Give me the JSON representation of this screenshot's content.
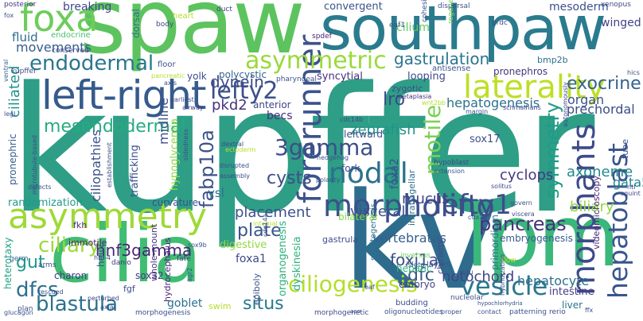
{
  "words": [
    {
      "text": "kupffer",
      "color": "#2e9e86"
    },
    {
      "text": "spaw",
      "color": "#5cc35f"
    },
    {
      "text": "southpaw",
      "color": "#2a7b8e"
    },
    {
      "text": "kv",
      "color": "#2e6c8e"
    },
    {
      "text": "lpm",
      "color": "#3ab77a"
    },
    {
      "text": "cilia",
      "color": "#40bd73"
    },
    {
      "text": "left-right",
      "color": "#365b8c"
    },
    {
      "text": "asymmetry",
      "color": "#9fd938"
    },
    {
      "text": "laterality",
      "color": "#bddf26"
    },
    {
      "text": "forerunner",
      "color": "#3b528b"
    },
    {
      "text": "morpholino",
      "color": "#3b518b"
    },
    {
      "text": "morphants",
      "color": "#3e4a89"
    },
    {
      "text": "hepatoblast",
      "color": "#39558c"
    },
    {
      "text": "foxa",
      "color": "#6ccd5a"
    },
    {
      "text": "asymmetric",
      "color": "#9bd93c"
    },
    {
      "text": "endodermal",
      "color": "#2a768e"
    },
    {
      "text": "ciliogenesis",
      "color": "#b5de2b"
    },
    {
      "text": "vesicle",
      "color": "#2a788e"
    },
    {
      "text": "nodal",
      "color": "#2c718e"
    },
    {
      "text": "lefty1",
      "color": "#3d4d8a"
    },
    {
      "text": "lefty2",
      "color": "#3b518b"
    },
    {
      "text": "blastula",
      "color": "#2c728e"
    },
    {
      "text": "dfcs",
      "color": "#2d708e"
    },
    {
      "text": "ciliary",
      "color": "#9bd93c"
    },
    {
      "text": "gastrulation",
      "color": "#2b748e"
    },
    {
      "text": "mesendodermal",
      "color": "#25ab82"
    },
    {
      "text": "exocrine",
      "color": "#33638d"
    },
    {
      "text": "pancreas",
      "color": "#46327e"
    },
    {
      "text": "3gamma",
      "color": "#3d4e8a"
    },
    {
      "text": "motile",
      "color": "#7ad151"
    },
    {
      "text": "symmetry",
      "color": "#1e9c89"
    },
    {
      "text": "dynein",
      "color": "#3e4c8a"
    },
    {
      "text": "lro",
      "color": "#3e4989"
    },
    {
      "text": "fabp10a",
      "color": "#3b528b"
    },
    {
      "text": "cysts",
      "color": "#3c4f8a"
    },
    {
      "text": "plate",
      "color": "#3a548c"
    },
    {
      "text": "placement",
      "color": "#3b518b"
    },
    {
      "text": "hnf3gamma",
      "color": "#482576"
    },
    {
      "text": "gut",
      "color": "#1f988b"
    },
    {
      "text": "situs",
      "color": "#2a788e"
    },
    {
      "text": "dfc",
      "color": "#38598c"
    },
    {
      "text": "foxj1a",
      "color": "#3d4e8a"
    },
    {
      "text": "notochord",
      "color": "#404588"
    },
    {
      "text": "hepatocyte",
      "color": "#2d708e"
    },
    {
      "text": "vertebrates",
      "color": "#35608d"
    },
    {
      "text": "mucus",
      "color": "#424086"
    },
    {
      "text": "visceral",
      "color": "#3b528b"
    },
    {
      "text": "biliary",
      "color": "#93d741"
    },
    {
      "text": "cyclops",
      "color": "#453882"
    },
    {
      "text": "axoneme",
      "color": "#23898e"
    },
    {
      "text": "gata5",
      "color": "#25848e"
    },
    {
      "text": "zebrafish",
      "color": "#1f958b"
    },
    {
      "text": "pkd2",
      "color": "#46337e"
    },
    {
      "text": "hepatogenesis",
      "color": "#2d708e"
    },
    {
      "text": "organ",
      "color": "#3b518b"
    },
    {
      "text": "prechordal",
      "color": "#3d4d8a"
    },
    {
      "text": "ciliated",
      "color": "#21918c"
    },
    {
      "text": "fluid",
      "color": "#2f6b8e"
    },
    {
      "text": "movements",
      "color": "#365c8d"
    },
    {
      "text": "mesoderm",
      "color": "#3b528b"
    },
    {
      "text": "winged",
      "color": "#414487"
    },
    {
      "text": "cilium",
      "color": "#5ec962"
    },
    {
      "text": "convergent",
      "color": "#3b528b"
    },
    {
      "text": "breaking",
      "color": "#3f4889"
    },
    {
      "text": "endocrine",
      "color": "#44bf70"
    },
    {
      "text": "polycystic",
      "color": "#33638d"
    },
    {
      "text": "syncytial",
      "color": "#46327e"
    },
    {
      "text": "looping",
      "color": "#3e4989"
    },
    {
      "text": "yolk",
      "color": "#3d4e8a"
    },
    {
      "text": "pronephros",
      "color": "#453781"
    },
    {
      "text": "bmp2b",
      "color": "#2c718e"
    },
    {
      "text": "becs",
      "color": "#472d7b"
    },
    {
      "text": "anterior",
      "color": "#414487"
    },
    {
      "text": "leftward",
      "color": "#3b528b"
    },
    {
      "text": "sox17",
      "color": "#3e4c8a"
    },
    {
      "text": "midline",
      "color": "#3b528b"
    },
    {
      "text": "hypoglycemia",
      "color": "#90d743"
    },
    {
      "text": "ciliopathies",
      "color": "#3a548c"
    },
    {
      "text": "trafficking",
      "color": "#3b528b"
    },
    {
      "text": "randomization",
      "color": "#1f9a8a"
    },
    {
      "text": "curvature",
      "color": "#3b518b"
    },
    {
      "text": "ysl",
      "color": "#2d708e"
    },
    {
      "text": "fkh",
      "color": "#46337e"
    },
    {
      "text": "immotile",
      "color": "#481f71"
    },
    {
      "text": "digestive",
      "color": "#93d741"
    },
    {
      "text": "foxa1",
      "color": "#3e4a89"
    },
    {
      "text": "helix",
      "color": "#3b518b"
    },
    {
      "text": "heterotaxy",
      "color": "#20a386"
    },
    {
      "text": "charon",
      "color": "#443983"
    },
    {
      "text": "sox32",
      "color": "#453882"
    },
    {
      "text": "hydrocephalus",
      "color": "#482878"
    },
    {
      "text": "whole-mount",
      "color": "#46327e"
    },
    {
      "text": "goblet",
      "color": "#2c728e"
    },
    {
      "text": "swim",
      "color": "#b5de2b"
    },
    {
      "text": "pronephric",
      "color": "#365c8d"
    },
    {
      "text": "organogenesis",
      "color": "#2db27d"
    },
    {
      "text": "dyskinesia",
      "color": "#2db27d"
    },
    {
      "text": "embryo",
      "color": "#414487"
    },
    {
      "text": "hepatic",
      "color": "#35b779"
    },
    {
      "text": "dorsal",
      "color": "#2d708e"
    },
    {
      "text": "posterior",
      "color": "#453781"
    },
    {
      "text": "somitogenesis",
      "color": "#2c728e"
    },
    {
      "text": "fork",
      "color": "#3e4989"
    },
    {
      "text": "foxa2",
      "color": "#3b528b"
    },
    {
      "text": "bilateral",
      "color": "#86d549"
    },
    {
      "text": "primordium",
      "color": "#2c728e"
    },
    {
      "text": "chirality",
      "color": "#3e4c8a"
    },
    {
      "text": "intestine",
      "color": "#433e85"
    },
    {
      "text": "liver",
      "color": "#2c728e"
    },
    {
      "text": "intraflagellar",
      "color": "#2c728e"
    },
    {
      "text": "embryogenesis",
      "color": "#365c8d"
    },
    {
      "text": "videomicroscopy",
      "color": "#482475"
    },
    {
      "text": "tube",
      "color": "#3b528b"
    },
    {
      "text": "gastrula",
      "color": "#3d4e8a"
    },
    {
      "text": "germ",
      "color": "#33638d"
    },
    {
      "text": "fgf",
      "color": "#3e4989"
    },
    {
      "text": "fate",
      "color": "#433e85"
    },
    {
      "text": "danio",
      "color": "#453781"
    },
    {
      "text": "arms",
      "color": "#3b518b"
    },
    {
      "text": "plan",
      "color": "#3b528b"
    },
    {
      "text": "epiboly",
      "color": "#3b528b"
    },
    {
      "text": "morphogenesis",
      "color": "#3e4c8a"
    },
    {
      "text": "morphogenetic",
      "color": "#3e4989"
    },
    {
      "text": "layers",
      "color": "#3b528b"
    },
    {
      "text": "flow",
      "color": "#b8de29"
    },
    {
      "text": "islets",
      "color": "#2d708e"
    },
    {
      "text": "inversus",
      "color": "#6ccd5a"
    },
    {
      "text": "budding",
      "color": "#3e4c8a"
    },
    {
      "text": "oligonucleotides",
      "color": "#3b528b"
    },
    {
      "text": "patterning",
      "color": "#3b528b"
    },
    {
      "text": "rerio",
      "color": "#3e4989"
    },
    {
      "text": "nucleolar",
      "color": "#3d4e8a"
    },
    {
      "text": "duct",
      "color": "#3e4989"
    },
    {
      "text": "heart",
      "color": "#b5de2b"
    },
    {
      "text": "body",
      "color": "#3e4989"
    },
    {
      "text": "dispersal",
      "color": "#3b528b"
    },
    {
      "text": "xenopus",
      "color": "#3e4989"
    },
    {
      "text": "cohesive",
      "color": "#3b528b"
    },
    {
      "text": "regeneration",
      "color": "#7ad151"
    },
    {
      "text": "prdc",
      "color": "#3e4989"
    },
    {
      "text": "eaf1",
      "color": "#3b528b"
    },
    {
      "text": "spdef",
      "color": "#482576"
    },
    {
      "text": "conserved",
      "color": "#3e4989"
    },
    {
      "text": "pancreatic",
      "color": "#b5de2b"
    },
    {
      "text": "floor",
      "color": "#3b528b"
    },
    {
      "text": "axis",
      "color": "#3b518b"
    },
    {
      "text": "pharyngeal",
      "color": "#3b528b"
    },
    {
      "text": "zygotic",
      "color": "#3e4c8a"
    },
    {
      "text": "metaplasia",
      "color": "#46327e"
    },
    {
      "text": "antisense",
      "color": "#3b528b"
    },
    {
      "text": "kupffer",
      "color": "#3d4e8a"
    },
    {
      "text": "airway",
      "color": "#453781"
    },
    {
      "text": "earliest",
      "color": "#3e4989"
    },
    {
      "text": "legl",
      "color": "#3b528b"
    },
    {
      "text": "ventral",
      "color": "#33638d"
    },
    {
      "text": "fox",
      "color": "#3b528b"
    },
    {
      "text": "wnt2bb",
      "color": "#b5de2b"
    },
    {
      "text": "schmalhans",
      "color": "#3e4989"
    },
    {
      "text": "margin",
      "color": "#3b528b"
    },
    {
      "text": "cdc14b",
      "color": "#3e4989"
    },
    {
      "text": "hedgehog",
      "color": "#3b528b"
    },
    {
      "text": "dextral",
      "color": "#3e4989"
    },
    {
      "text": "ectoderm",
      "color": "#b5de2b"
    },
    {
      "text": "establishment",
      "color": "#3b528b"
    },
    {
      "text": "sidedness",
      "color": "#3b528b"
    },
    {
      "text": "microtubule-based",
      "color": "#3b528b"
    },
    {
      "text": "disrupted",
      "color": "#3b528b"
    },
    {
      "text": "assembly",
      "color": "#3e4989"
    },
    {
      "text": "defects",
      "color": "#3b528b"
    },
    {
      "text": "polarity",
      "color": "#3b528b"
    },
    {
      "text": "hypoblast",
      "color": "#3e4989"
    },
    {
      "text": "solitus",
      "color": "#3e4989"
    },
    {
      "text": "extension",
      "color": "#3b528b"
    },
    {
      "text": "viscera",
      "color": "#3e4989"
    },
    {
      "text": "cdx1b",
      "color": "#3b528b"
    },
    {
      "text": "govern",
      "color": "#3b528b"
    },
    {
      "text": "internal",
      "color": "#b5de2b"
    },
    {
      "text": "hfh-4",
      "color": "#3e4989"
    },
    {
      "text": "sox9b",
      "color": "#3b528b"
    },
    {
      "text": "cdc14a",
      "color": "#3b528b"
    },
    {
      "text": "rescued",
      "color": "#3b528b"
    },
    {
      "text": "perturbed",
      "color": "#3e4989"
    },
    {
      "text": "glucagon",
      "color": "#3b528b"
    },
    {
      "text": "agr2",
      "color": "#3b528b"
    },
    {
      "text": "eaf",
      "color": "#3e4989"
    },
    {
      "text": "proper",
      "color": "#3b528b"
    },
    {
      "text": "autonomously",
      "color": "#3e4989"
    },
    {
      "text": "hybridization",
      "color": "#3b528b"
    },
    {
      "text": "hypochlorhydria",
      "color": "#3b528b"
    },
    {
      "text": "situ",
      "color": "#3b528b"
    },
    {
      "text": "contact",
      "color": "#3b528b"
    },
    {
      "text": "hics",
      "color": "#3b528b"
    },
    {
      "text": "ntl",
      "color": "#3e4989"
    },
    {
      "text": "squint",
      "color": "#3e4989"
    },
    {
      "text": "ffx",
      "color": "#3b528b"
    },
    {
      "text": "aao",
      "color": "#3b528b"
    },
    {
      "text": "axial",
      "color": "#3b528b"
    }
  ]
}
